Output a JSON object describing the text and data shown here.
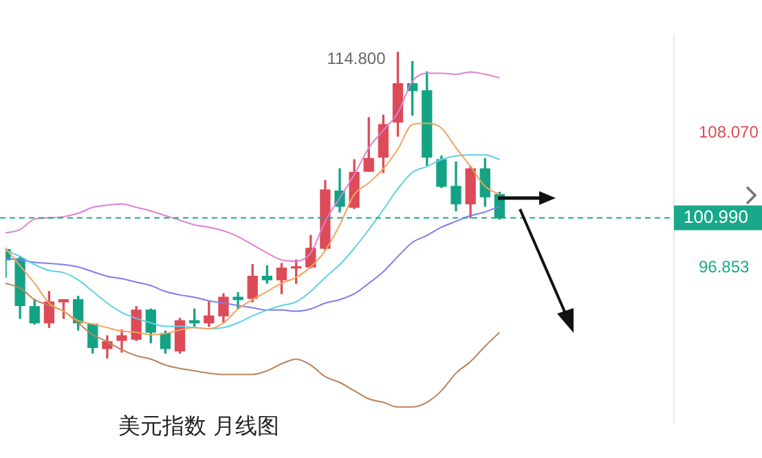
{
  "chart_data": {
    "type": "candlestick",
    "title": "美元指数 月线图",
    "categories": [
      null,
      null,
      null,
      null,
      null,
      null,
      null,
      null,
      null,
      null,
      null,
      null,
      null,
      null,
      null,
      null,
      null,
      null,
      null,
      null,
      null,
      null,
      null,
      null,
      null,
      null,
      null,
      null,
      null,
      null,
      null,
      null,
      null,
      null,
      null,
      null,
      null,
      null,
      null,
      null,
      null,
      null,
      null,
      null,
      null,
      null,
      null
    ],
    "ohlc": [
      [
        98.36,
        98.46,
        96.03,
        97.49
      ],
      [
        97.59,
        97.78,
        92.62,
        93.69
      ],
      [
        93.6,
        94.18,
        92.14,
        92.24
      ],
      [
        92.24,
        94.86,
        91.85,
        93.99
      ],
      [
        93.99,
        94.18,
        92.62,
        94.18
      ],
      [
        94.18,
        94.47,
        91.65,
        92.24
      ],
      [
        92.14,
        92.14,
        89.71,
        90.19
      ],
      [
        90.1,
        91.17,
        89.32,
        90.68
      ],
      [
        90.78,
        91.65,
        89.8,
        91.17
      ],
      [
        90.87,
        93.6,
        90.78,
        93.31
      ],
      [
        93.31,
        93.4,
        90.58,
        91.46
      ],
      [
        91.36,
        91.56,
        89.71,
        90.1
      ],
      [
        89.9,
        92.62,
        89.71,
        92.43
      ],
      [
        92.43,
        93.4,
        91.95,
        92.24
      ],
      [
        92.24,
        93.99,
        91.95,
        92.82
      ],
      [
        92.82,
        94.67,
        92.24,
        94.38
      ],
      [
        94.38,
        94.76,
        93.4,
        94.18
      ],
      [
        94.28,
        97.1,
        93.99,
        96.13
      ],
      [
        96.13,
        97.0,
        95.54,
        95.83
      ],
      [
        95.83,
        97.2,
        94.67,
        96.81
      ],
      [
        96.81,
        97.49,
        95.54,
        96.9
      ],
      [
        96.9,
        99.53,
        96.81,
        98.46
      ],
      [
        98.46,
        104.1,
        98.36,
        103.32
      ],
      [
        103.23,
        105.08,
        101.48,
        101.96
      ],
      [
        101.87,
        105.85,
        101.77,
        104.78
      ],
      [
        104.88,
        109.36,
        104.88,
        105.95
      ],
      [
        106.05,
        109.55,
        104.78,
        108.77
      ],
      [
        108.97,
        114.8,
        107.8,
        112.18
      ],
      [
        112.18,
        114.02,
        109.55,
        111.59
      ],
      [
        111.59,
        113.15,
        105.37,
        106.05
      ],
      [
        105.85,
        106.15,
        103.52,
        103.62
      ],
      [
        103.62,
        105.66,
        101.57,
        102.16
      ],
      [
        102.16,
        105.27,
        100.99,
        105.08
      ],
      [
        105.08,
        105.95,
        101.96,
        102.74
      ],
      [
        102.94,
        103.13,
        100.89,
        100.99
      ],
      null,
      null,
      null,
      null,
      null,
      null,
      null,
      null,
      null,
      null,
      null,
      null
    ],
    "colors": [
      "#13a384",
      "#13a384",
      "#13a384",
      "#dc4b57",
      "#dc4b57",
      "#13a384",
      "#13a384",
      "#dc4b57",
      "#dc4b57",
      "#dc4b57",
      "#13a384",
      "#13a384",
      "#dc4b57",
      "#13a384",
      "#dc4b57",
      "#dc4b57",
      "#13a384",
      "#dc4b57",
      "#13a384",
      "#dc4b57",
      "#dc4b57",
      "#dc4b57",
      "#dc4b57",
      "#13a384",
      "#dc4b57",
      "#dc4b57",
      "#dc4b57",
      "#dc4b57",
      "#13a384",
      "#13a384",
      "#13a384",
      "#13a384",
      "#dc4b57",
      "#13a384",
      "#13a384",
      null,
      null,
      null,
      null,
      null,
      null,
      null,
      null,
      null,
      null,
      null,
      null
    ],
    "series": [
      {
        "type": "line",
        "color": "#f5a25d",
        "values": [
          98.46,
          97.0,
          95.54,
          93.89,
          93.21,
          92.43,
          92.14,
          91.85,
          91.56,
          91.46,
          91.26,
          91.36,
          91.65,
          91.85,
          91.75,
          92.24,
          93.4,
          94.18,
          94.86,
          95.54,
          96.03,
          96.9,
          98.27,
          100.41,
          102.94,
          103.91,
          105.08,
          106.73,
          108.77,
          108.87,
          108.48,
          106.83,
          105.27,
          103.62,
          102.94,
          null,
          null,
          null,
          null,
          null,
          null,
          null,
          null,
          null,
          null,
          null,
          null
        ]
      },
      {
        "type": "line",
        "color": "#5fd0e6",
        "values": [
          98.27,
          97.78,
          97.1,
          96.61,
          96.42,
          95.83,
          94.86,
          93.89,
          93.11,
          92.62,
          92.24,
          91.95,
          91.95,
          91.85,
          91.75,
          91.85,
          92.24,
          92.82,
          93.31,
          93.69,
          93.99,
          94.86,
          96.03,
          97.1,
          98.46,
          100.02,
          101.67,
          103.42,
          104.78,
          105.27,
          105.85,
          106.15,
          106.24,
          106.24,
          105.85,
          null,
          null,
          null,
          null,
          null,
          null,
          null,
          null,
          null,
          null,
          null,
          null
        ]
      },
      {
        "type": "line",
        "color": "#7d7df0",
        "values": [
          97.59,
          97.49,
          97.29,
          97.2,
          97.1,
          96.9,
          96.51,
          96.13,
          95.93,
          95.64,
          95.35,
          94.86,
          94.57,
          94.38,
          94.08,
          93.89,
          93.69,
          93.5,
          93.31,
          93.31,
          93.21,
          93.4,
          93.89,
          94.18,
          94.67,
          95.54,
          96.51,
          97.78,
          98.95,
          99.53,
          100.21,
          100.7,
          101.18,
          101.48,
          101.96,
          null,
          null,
          null,
          null,
          null,
          null,
          null,
          null,
          null,
          null,
          null,
          null
        ]
      },
      {
        "type": "line",
        "color": "#e07fd6",
        "values": [
          99.73,
          100.02,
          100.89,
          100.99,
          101.09,
          101.38,
          101.87,
          102.06,
          102.16,
          101.87,
          101.57,
          101.18,
          100.8,
          100.41,
          100.21,
          99.92,
          99.43,
          98.75,
          98.07,
          97.49,
          97.39,
          98.07,
          100.7,
          102.64,
          104.59,
          106.83,
          108.29,
          109.75,
          112.37,
          113.05,
          113.05,
          112.96,
          113.15,
          112.96,
          112.66,
          null,
          null,
          null,
          null,
          null,
          null,
          null,
          null,
          null,
          null,
          null,
          null
        ]
      },
      {
        "type": "line",
        "color": "#b9825a",
        "values": [
          95.54,
          95.15,
          94.18,
          93.69,
          93.21,
          92.24,
          91.26,
          90.68,
          90.0,
          89.51,
          89.22,
          88.73,
          88.44,
          88.25,
          88.05,
          87.95,
          87.95,
          87.95,
          88.25,
          88.83,
          89.22,
          88.73,
          87.76,
          87.27,
          86.59,
          85.91,
          85.62,
          85.23,
          85.23,
          85.62,
          86.59,
          88.05,
          89.02,
          90.29,
          91.46,
          null,
          null,
          null,
          null,
          null,
          null,
          null,
          null,
          null,
          null,
          null,
          null
        ]
      }
    ],
    "ylim": [
      83.87,
      116.26
    ],
    "yticks": [
      {
        "value": 108.07,
        "label": "108.070"
      },
      {
        "value": 96.853,
        "label": "96.853"
      }
    ],
    "tick_labels": "y",
    "ref_lines": [
      {
        "axis": "y",
        "value": 100.99,
        "label": "100.990",
        "color": "#1aa88a",
        "line_style": "dashed"
      }
    ],
    "annotations": [
      "114.800"
    ]
  }
}
